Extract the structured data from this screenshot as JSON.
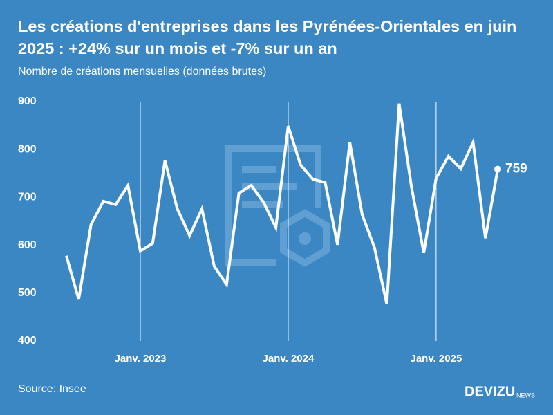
{
  "chart_data": {
    "type": "line",
    "title": "Les créations d'entreprises dans les Pyrénées-Orientales en juin 2025 : +24% sur un mois et -7% sur un an",
    "subtitle": "Nombre de créations mensuelles (données brutes)",
    "x": [
      "2022-07",
      "2022-08",
      "2022-09",
      "2022-10",
      "2022-11",
      "2022-12",
      "2023-01",
      "2023-02",
      "2023-03",
      "2023-04",
      "2023-05",
      "2023-06",
      "2023-07",
      "2023-08",
      "2023-09",
      "2023-10",
      "2023-11",
      "2023-12",
      "2024-01",
      "2024-02",
      "2024-03",
      "2024-04",
      "2024-05",
      "2024-06",
      "2024-07",
      "2024-08",
      "2024-09",
      "2024-10",
      "2024-11",
      "2024-12",
      "2025-01",
      "2025-02",
      "2025-03",
      "2025-04",
      "2025-05",
      "2025-06"
    ],
    "values": [
      578,
      487,
      643,
      692,
      685,
      725,
      588,
      604,
      777,
      676,
      620,
      676,
      556,
      518,
      709,
      725,
      690,
      637,
      849,
      768,
      738,
      731,
      601,
      815,
      664,
      595,
      477,
      896,
      722,
      584,
      740,
      786,
      760,
      815,
      615,
      759
    ],
    "color": "#ffffff",
    "ylim": [
      400,
      900
    ],
    "yticks": [
      400,
      500,
      600,
      700,
      800,
      900
    ],
    "xticks": [
      {
        "value": "2023-01",
        "label": "Janv. 2023"
      },
      {
        "value": "2024-01",
        "label": "Janv. 2024"
      },
      {
        "value": "2025-01",
        "label": "Janv. 2025"
      }
    ],
    "grid": true,
    "source": "Source: Insee",
    "brand": "DEVIZU",
    "brand_suffix": "NEWS"
  }
}
